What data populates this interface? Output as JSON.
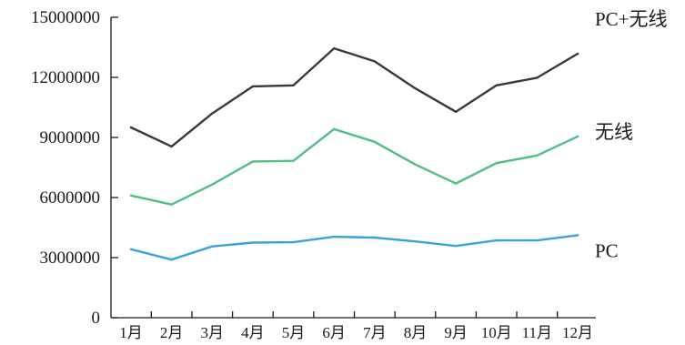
{
  "chart_data": {
    "type": "line",
    "title": "",
    "xlabel": "",
    "ylabel": "",
    "categories": [
      "1月",
      "2月",
      "3月",
      "4月",
      "5月",
      "6月",
      "7月",
      "8月",
      "9月",
      "10月",
      "11月",
      "12月"
    ],
    "ylim": [
      0,
      15000000
    ],
    "yticks": [
      0,
      3000000,
      6000000,
      9000000,
      12000000,
      15000000
    ],
    "ytick_labels": [
      "0",
      "3000000",
      "6000000",
      "9000000",
      "12000000",
      "15000000"
    ],
    "grid": false,
    "legend": "inline-right",
    "series": [
      {
        "name": "PC+无线",
        "color": "#3a3a3a",
        "values": [
          9500000,
          8550000,
          10200000,
          11550000,
          11600000,
          13450000,
          12800000,
          11450000,
          10280000,
          11600000,
          11980000,
          13180000
        ]
      },
      {
        "name": "无线",
        "color": "#4dbf86",
        "values": [
          6100000,
          5650000,
          6650000,
          7800000,
          7830000,
          9420000,
          8780000,
          7650000,
          6700000,
          7720000,
          8100000,
          9050000
        ]
      },
      {
        "name": "PC",
        "color": "#3ba3d6",
        "values": [
          3420000,
          2900000,
          3560000,
          3750000,
          3770000,
          4040000,
          4000000,
          3810000,
          3580000,
          3860000,
          3860000,
          4120000
        ]
      }
    ]
  }
}
